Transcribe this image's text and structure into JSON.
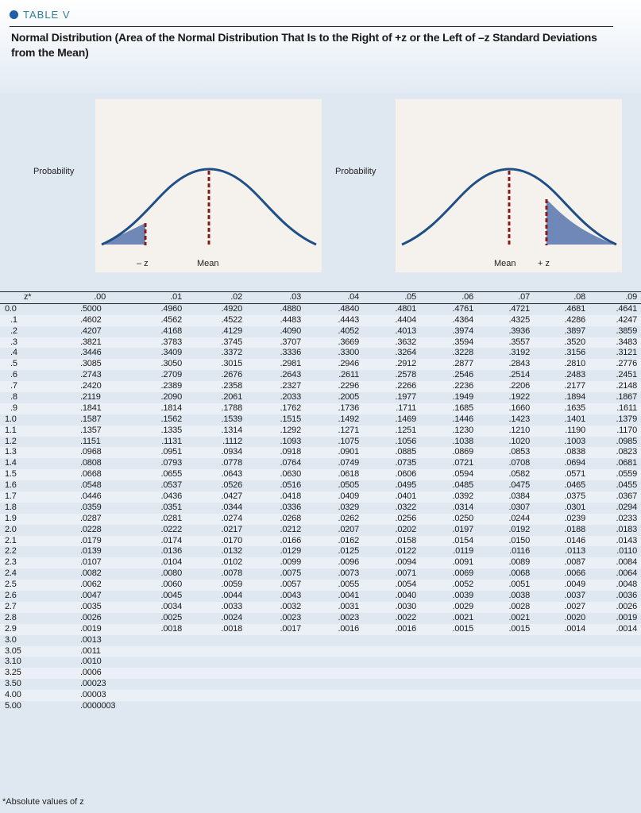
{
  "table_label": "TABLE V",
  "caption": "Normal Distribution (Area of the Normal Distribution That Is to the Right of +z or the Left of –z Standard Deviations from the Mean)",
  "figure_left": {
    "probability": "Probability",
    "neg_z": "– z",
    "mean": "Mean"
  },
  "figure_right": {
    "probability": "Probability",
    "mean": "Mean",
    "pos_z": "+ z"
  },
  "colors": {
    "curve": "#1f4f86",
    "shade": "#6f88b8",
    "dash": "#8b1a1a",
    "accent": "#2f7fa0"
  },
  "columns": [
    "z*",
    ".00",
    ".01",
    ".02",
    ".03",
    ".04",
    ".05",
    ".06",
    ".07",
    ".08",
    ".09"
  ],
  "rows": [
    [
      "0.0",
      ".5000",
      ".4960",
      ".4920",
      ".4880",
      ".4840",
      ".4801",
      ".4761",
      ".4721",
      ".4681",
      ".4641"
    ],
    [
      ".1",
      ".4602",
      ".4562",
      ".4522",
      ".4483",
      ".4443",
      ".4404",
      ".4364",
      ".4325",
      ".4286",
      ".4247"
    ],
    [
      ".2",
      ".4207",
      ".4168",
      ".4129",
      ".4090",
      ".4052",
      ".4013",
      ".3974",
      ".3936",
      ".3897",
      ".3859"
    ],
    [
      ".3",
      ".3821",
      ".3783",
      ".3745",
      ".3707",
      ".3669",
      ".3632",
      ".3594",
      ".3557",
      ".3520",
      ".3483"
    ],
    [
      ".4",
      ".3446",
      ".3409",
      ".3372",
      ".3336",
      ".3300",
      ".3264",
      ".3228",
      ".3192",
      ".3156",
      ".3121"
    ],
    [
      ".5",
      ".3085",
      ".3050",
      ".3015",
      ".2981",
      ".2946",
      ".2912",
      ".2877",
      ".2843",
      ".2810",
      ".2776"
    ],
    [
      ".6",
      ".2743",
      ".2709",
      ".2676",
      ".2643",
      ".2611",
      ".2578",
      ".2546",
      ".2514",
      ".2483",
      ".2451"
    ],
    [
      ".7",
      ".2420",
      ".2389",
      ".2358",
      ".2327",
      ".2296",
      ".2266",
      ".2236",
      ".2206",
      ".2177",
      ".2148"
    ],
    [
      ".8",
      ".2119",
      ".2090",
      ".2061",
      ".2033",
      ".2005",
      ".1977",
      ".1949",
      ".1922",
      ".1894",
      ".1867"
    ],
    [
      ".9",
      ".1841",
      ".1814",
      ".1788",
      ".1762",
      ".1736",
      ".1711",
      ".1685",
      ".1660",
      ".1635",
      ".1611"
    ],
    [
      "1.0",
      ".1587",
      ".1562",
      ".1539",
      ".1515",
      ".1492",
      ".1469",
      ".1446",
      ".1423",
      ".1401",
      ".1379"
    ],
    [
      "1.1",
      ".1357",
      ".1335",
      ".1314",
      ".1292",
      ".1271",
      ".1251",
      ".1230",
      ".1210",
      ".1190",
      ".1170"
    ],
    [
      "1.2",
      ".1151",
      ".1131",
      ".1112",
      ".1093",
      ".1075",
      ".1056",
      ".1038",
      ".1020",
      ".1003",
      ".0985"
    ],
    [
      "1.3",
      ".0968",
      ".0951",
      ".0934",
      ".0918",
      ".0901",
      ".0885",
      ".0869",
      ".0853",
      ".0838",
      ".0823"
    ],
    [
      "1.4",
      ".0808",
      ".0793",
      ".0778",
      ".0764",
      ".0749",
      ".0735",
      ".0721",
      ".0708",
      ".0694",
      ".0681"
    ],
    [
      "1.5",
      ".0668",
      ".0655",
      ".0643",
      ".0630",
      ".0618",
      ".0606",
      ".0594",
      ".0582",
      ".0571",
      ".0559"
    ],
    [
      "1.6",
      ".0548",
      ".0537",
      ".0526",
      ".0516",
      ".0505",
      ".0495",
      ".0485",
      ".0475",
      ".0465",
      ".0455"
    ],
    [
      "1.7",
      ".0446",
      ".0436",
      ".0427",
      ".0418",
      ".0409",
      ".0401",
      ".0392",
      ".0384",
      ".0375",
      ".0367"
    ],
    [
      "1.8",
      ".0359",
      ".0351",
      ".0344",
      ".0336",
      ".0329",
      ".0322",
      ".0314",
      ".0307",
      ".0301",
      ".0294"
    ],
    [
      "1.9",
      ".0287",
      ".0281",
      ".0274",
      ".0268",
      ".0262",
      ".0256",
      ".0250",
      ".0244",
      ".0239",
      ".0233"
    ],
    [
      "2.0",
      ".0228",
      ".0222",
      ".0217",
      ".0212",
      ".0207",
      ".0202",
      ".0197",
      ".0192",
      ".0188",
      ".0183"
    ],
    [
      "2.1",
      ".0179",
      ".0174",
      ".0170",
      ".0166",
      ".0162",
      ".0158",
      ".0154",
      ".0150",
      ".0146",
      ".0143"
    ],
    [
      "2.2",
      ".0139",
      ".0136",
      ".0132",
      ".0129",
      ".0125",
      ".0122",
      ".0119",
      ".0116",
      ".0113",
      ".0110"
    ],
    [
      "2.3",
      ".0107",
      ".0104",
      ".0102",
      ".0099",
      ".0096",
      ".0094",
      ".0091",
      ".0089",
      ".0087",
      ".0084"
    ],
    [
      "2.4",
      ".0082",
      ".0080",
      ".0078",
      ".0075",
      ".0073",
      ".0071",
      ".0069",
      ".0068",
      ".0066",
      ".0064"
    ],
    [
      "2.5",
      ".0062",
      ".0060",
      ".0059",
      ".0057",
      ".0055",
      ".0054",
      ".0052",
      ".0051",
      ".0049",
      ".0048"
    ],
    [
      "2.6",
      ".0047",
      ".0045",
      ".0044",
      ".0043",
      ".0041",
      ".0040",
      ".0039",
      ".0038",
      ".0037",
      ".0036"
    ],
    [
      "2.7",
      ".0035",
      ".0034",
      ".0033",
      ".0032",
      ".0031",
      ".0030",
      ".0029",
      ".0028",
      ".0027",
      ".0026"
    ],
    [
      "2.8",
      ".0026",
      ".0025",
      ".0024",
      ".0023",
      ".0023",
      ".0022",
      ".0021",
      ".0021",
      ".0020",
      ".0019"
    ],
    [
      "2.9",
      ".0019",
      ".0018",
      ".0018",
      ".0017",
      ".0016",
      ".0016",
      ".0015",
      ".0015",
      ".0014",
      ".0014"
    ],
    [
      "3.0",
      ".0013"
    ],
    [
      "3.05",
      ".0011"
    ],
    [
      "3.10",
      ".0010"
    ],
    [
      "3.25",
      ".0006"
    ],
    [
      "3.50",
      ".00023"
    ],
    [
      "4.00",
      ".00003"
    ],
    [
      "5.00",
      ".0000003"
    ]
  ],
  "footnote": "*Absolute values of z"
}
